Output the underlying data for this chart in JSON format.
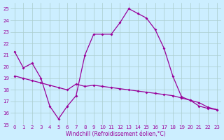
{
  "x": [
    0,
    1,
    2,
    3,
    4,
    5,
    6,
    7,
    8,
    9,
    10,
    11,
    12,
    13,
    14,
    15,
    16,
    17,
    18,
    19,
    20,
    21,
    22,
    23
  ],
  "line1": [
    21.3,
    19.9,
    20.3,
    19.0,
    16.6,
    15.5,
    16.6,
    17.5,
    21.0,
    22.8,
    22.8,
    22.8,
    23.8,
    25.0,
    24.6,
    24.2,
    23.2,
    21.6,
    19.2,
    17.4,
    17.1,
    16.6,
    16.4,
    16.3
  ],
  "line2": [
    19.2,
    19.0,
    18.8,
    18.6,
    18.4,
    18.2,
    18.0,
    18.5,
    18.3,
    18.4,
    18.3,
    18.2,
    18.1,
    18.0,
    17.9,
    17.8,
    17.7,
    17.6,
    17.5,
    17.3,
    17.1,
    16.9,
    16.5,
    16.3
  ],
  "line_color": "#990099",
  "bg_color": "#cceeff",
  "grid_color": "#aacccc",
  "xlabel": "Windchill (Refroidissement éolien,°C)",
  "xlim": [
    -0.5,
    23.5
  ],
  "ylim": [
    15,
    25.5
  ],
  "yticks": [
    15,
    16,
    17,
    18,
    19,
    20,
    21,
    22,
    23,
    24,
    25
  ],
  "xticks": [
    0,
    1,
    2,
    3,
    4,
    5,
    6,
    7,
    8,
    9,
    10,
    11,
    12,
    13,
    14,
    15,
    16,
    17,
    18,
    19,
    20,
    21,
    22,
    23
  ],
  "tick_fontsize": 5,
  "xlabel_fontsize": 5.5,
  "marker": "D",
  "markersize": 2.0,
  "linewidth": 0.9
}
